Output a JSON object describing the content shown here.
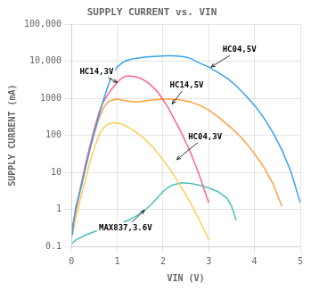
{
  "chart_data": {
    "type": "line",
    "title": "SUPPLY CURRENT vs. VIN",
    "x_label": "VIN (V)",
    "y_label": "SUPPLY CURRENT (mA)",
    "log": "y",
    "grid": true,
    "xlim": [
      0,
      5
    ],
    "xticks": [
      0,
      1,
      2,
      3,
      4,
      5
    ],
    "ylim": [
      0.1,
      100000
    ],
    "yticks": [
      0.1,
      1,
      10,
      100,
      1000,
      {
        "value": 10000,
        "label": "10,000"
      },
      {
        "value": 100000,
        "label": "100,000"
      }
    ],
    "series": [
      {
        "x": [
          0.02,
          0.05,
          0.1,
          0.2,
          0.3,
          0.4,
          0.5,
          0.6,
          0.7,
          0.8,
          0.9,
          1.0,
          1.1,
          1.2,
          1.4,
          1.6,
          1.8,
          2.0,
          2.1,
          2.2,
          2.3,
          2.4,
          2.5,
          2.6,
          2.8,
          3.0,
          3.2,
          3.4,
          3.6,
          3.8,
          4.0,
          4.2,
          4.4,
          4.6,
          4.8,
          5.0
        ],
        "values": [
          0.2,
          0.5,
          1.2,
          3.5,
          12,
          40,
          120,
          350,
          900,
          2200,
          4500,
          7000,
          9000,
          10500,
          12000,
          13000,
          13500,
          13800,
          14000,
          14000,
          13800,
          13500,
          13000,
          12000,
          9000,
          7000,
          5000,
          3500,
          2200,
          1200,
          650,
          300,
          120,
          40,
          10,
          1.5
        ]
      },
      {
        "x": [
          0.02,
          0.05,
          0.1,
          0.2,
          0.3,
          0.4,
          0.5,
          0.6,
          0.65,
          0.7,
          0.8,
          0.9,
          1.0,
          1.05,
          1.1,
          1.15,
          1.2,
          1.3,
          1.4,
          1.5,
          1.6,
          1.7,
          1.8,
          1.9,
          2.0,
          2.1,
          2.2,
          2.4,
          2.6,
          2.8,
          3.0
        ],
        "values": [
          0.3,
          0.5,
          1.0,
          4,
          15,
          50,
          150,
          400,
          600,
          800,
          1300,
          1900,
          2700,
          3100,
          3500,
          3800,
          4000,
          4000,
          3800,
          3500,
          3000,
          2500,
          1900,
          1400,
          900,
          600,
          350,
          120,
          35,
          8,
          1.5
        ]
      },
      {
        "x": [
          0.02,
          0.05,
          0.1,
          0.2,
          0.3,
          0.4,
          0.5,
          0.6,
          0.7,
          0.8,
          0.9,
          1.0,
          1.1,
          1.2,
          1.4,
          1.5,
          1.6,
          1.8,
          2.0,
          2.2,
          2.4,
          2.6,
          2.8,
          3.0,
          3.2,
          3.4,
          3.6,
          3.8,
          4.0,
          4.2,
          4.4,
          4.6
        ],
        "values": [
          0.3,
          0.5,
          1.0,
          3.5,
          12,
          40,
          110,
          280,
          550,
          800,
          900,
          950,
          900,
          850,
          800,
          820,
          850,
          900,
          950,
          950,
          900,
          800,
          650,
          480,
          320,
          200,
          120,
          65,
          32,
          14,
          5,
          1.2
        ]
      },
      {
        "x": [
          0.02,
          0.05,
          0.1,
          0.2,
          0.3,
          0.4,
          0.5,
          0.6,
          0.7,
          0.8,
          0.85,
          0.9,
          0.95,
          1.0,
          1.05,
          1.1,
          1.2,
          1.3,
          1.4,
          1.5,
          1.6,
          1.8,
          2.0,
          2.2,
          2.4,
          2.6,
          2.8,
          3.0
        ],
        "values": [
          0.2,
          0.3,
          0.6,
          2,
          6,
          18,
          45,
          100,
          160,
          200,
          210,
          215,
          220,
          215,
          210,
          200,
          175,
          150,
          125,
          100,
          80,
          45,
          22,
          10,
          4,
          1.5,
          0.5,
          0.15
        ]
      },
      {
        "x": [
          0.02,
          0.1,
          0.3,
          0.5,
          0.7,
          0.9,
          1.0,
          1.1,
          1.2,
          1.3,
          1.4,
          1.5,
          1.6,
          1.7,
          1.8,
          1.9,
          2.0,
          2.1,
          2.2,
          2.4,
          2.6,
          2.8,
          3.0,
          3.2,
          3.4,
          3.5,
          3.6
        ],
        "values": [
          0.12,
          0.15,
          0.2,
          0.25,
          0.3,
          0.35,
          0.38,
          0.42,
          0.48,
          0.55,
          0.65,
          0.78,
          0.95,
          1.2,
          1.6,
          2.2,
          3.0,
          3.8,
          4.5,
          5.2,
          5.0,
          4.5,
          3.8,
          3.0,
          2.0,
          1.2,
          0.5
        ]
      }
    ],
    "annotations": [
      {
        "text": "HC04,5V",
        "xy": [
          3.05,
          7000
        ],
        "xytext": [
          3.3,
          18000
        ]
      },
      {
        "text": "HC14,3V",
        "xy": [
          1.0,
          2700
        ],
        "xytext": [
          0.18,
          4500
        ]
      },
      {
        "text": "HC14,5V",
        "xy": [
          2.2,
          700
        ],
        "xytext": [
          2.15,
          2000
        ]
      },
      {
        "text": "HC04,3V",
        "xy": [
          2.3,
          22
        ],
        "xytext": [
          2.55,
          80
        ]
      },
      {
        "text": "MAX837,3.6V",
        "xy": [
          1.6,
          0.95
        ],
        "xytext": [
          0.6,
          0.27
        ]
      }
    ]
  }
}
